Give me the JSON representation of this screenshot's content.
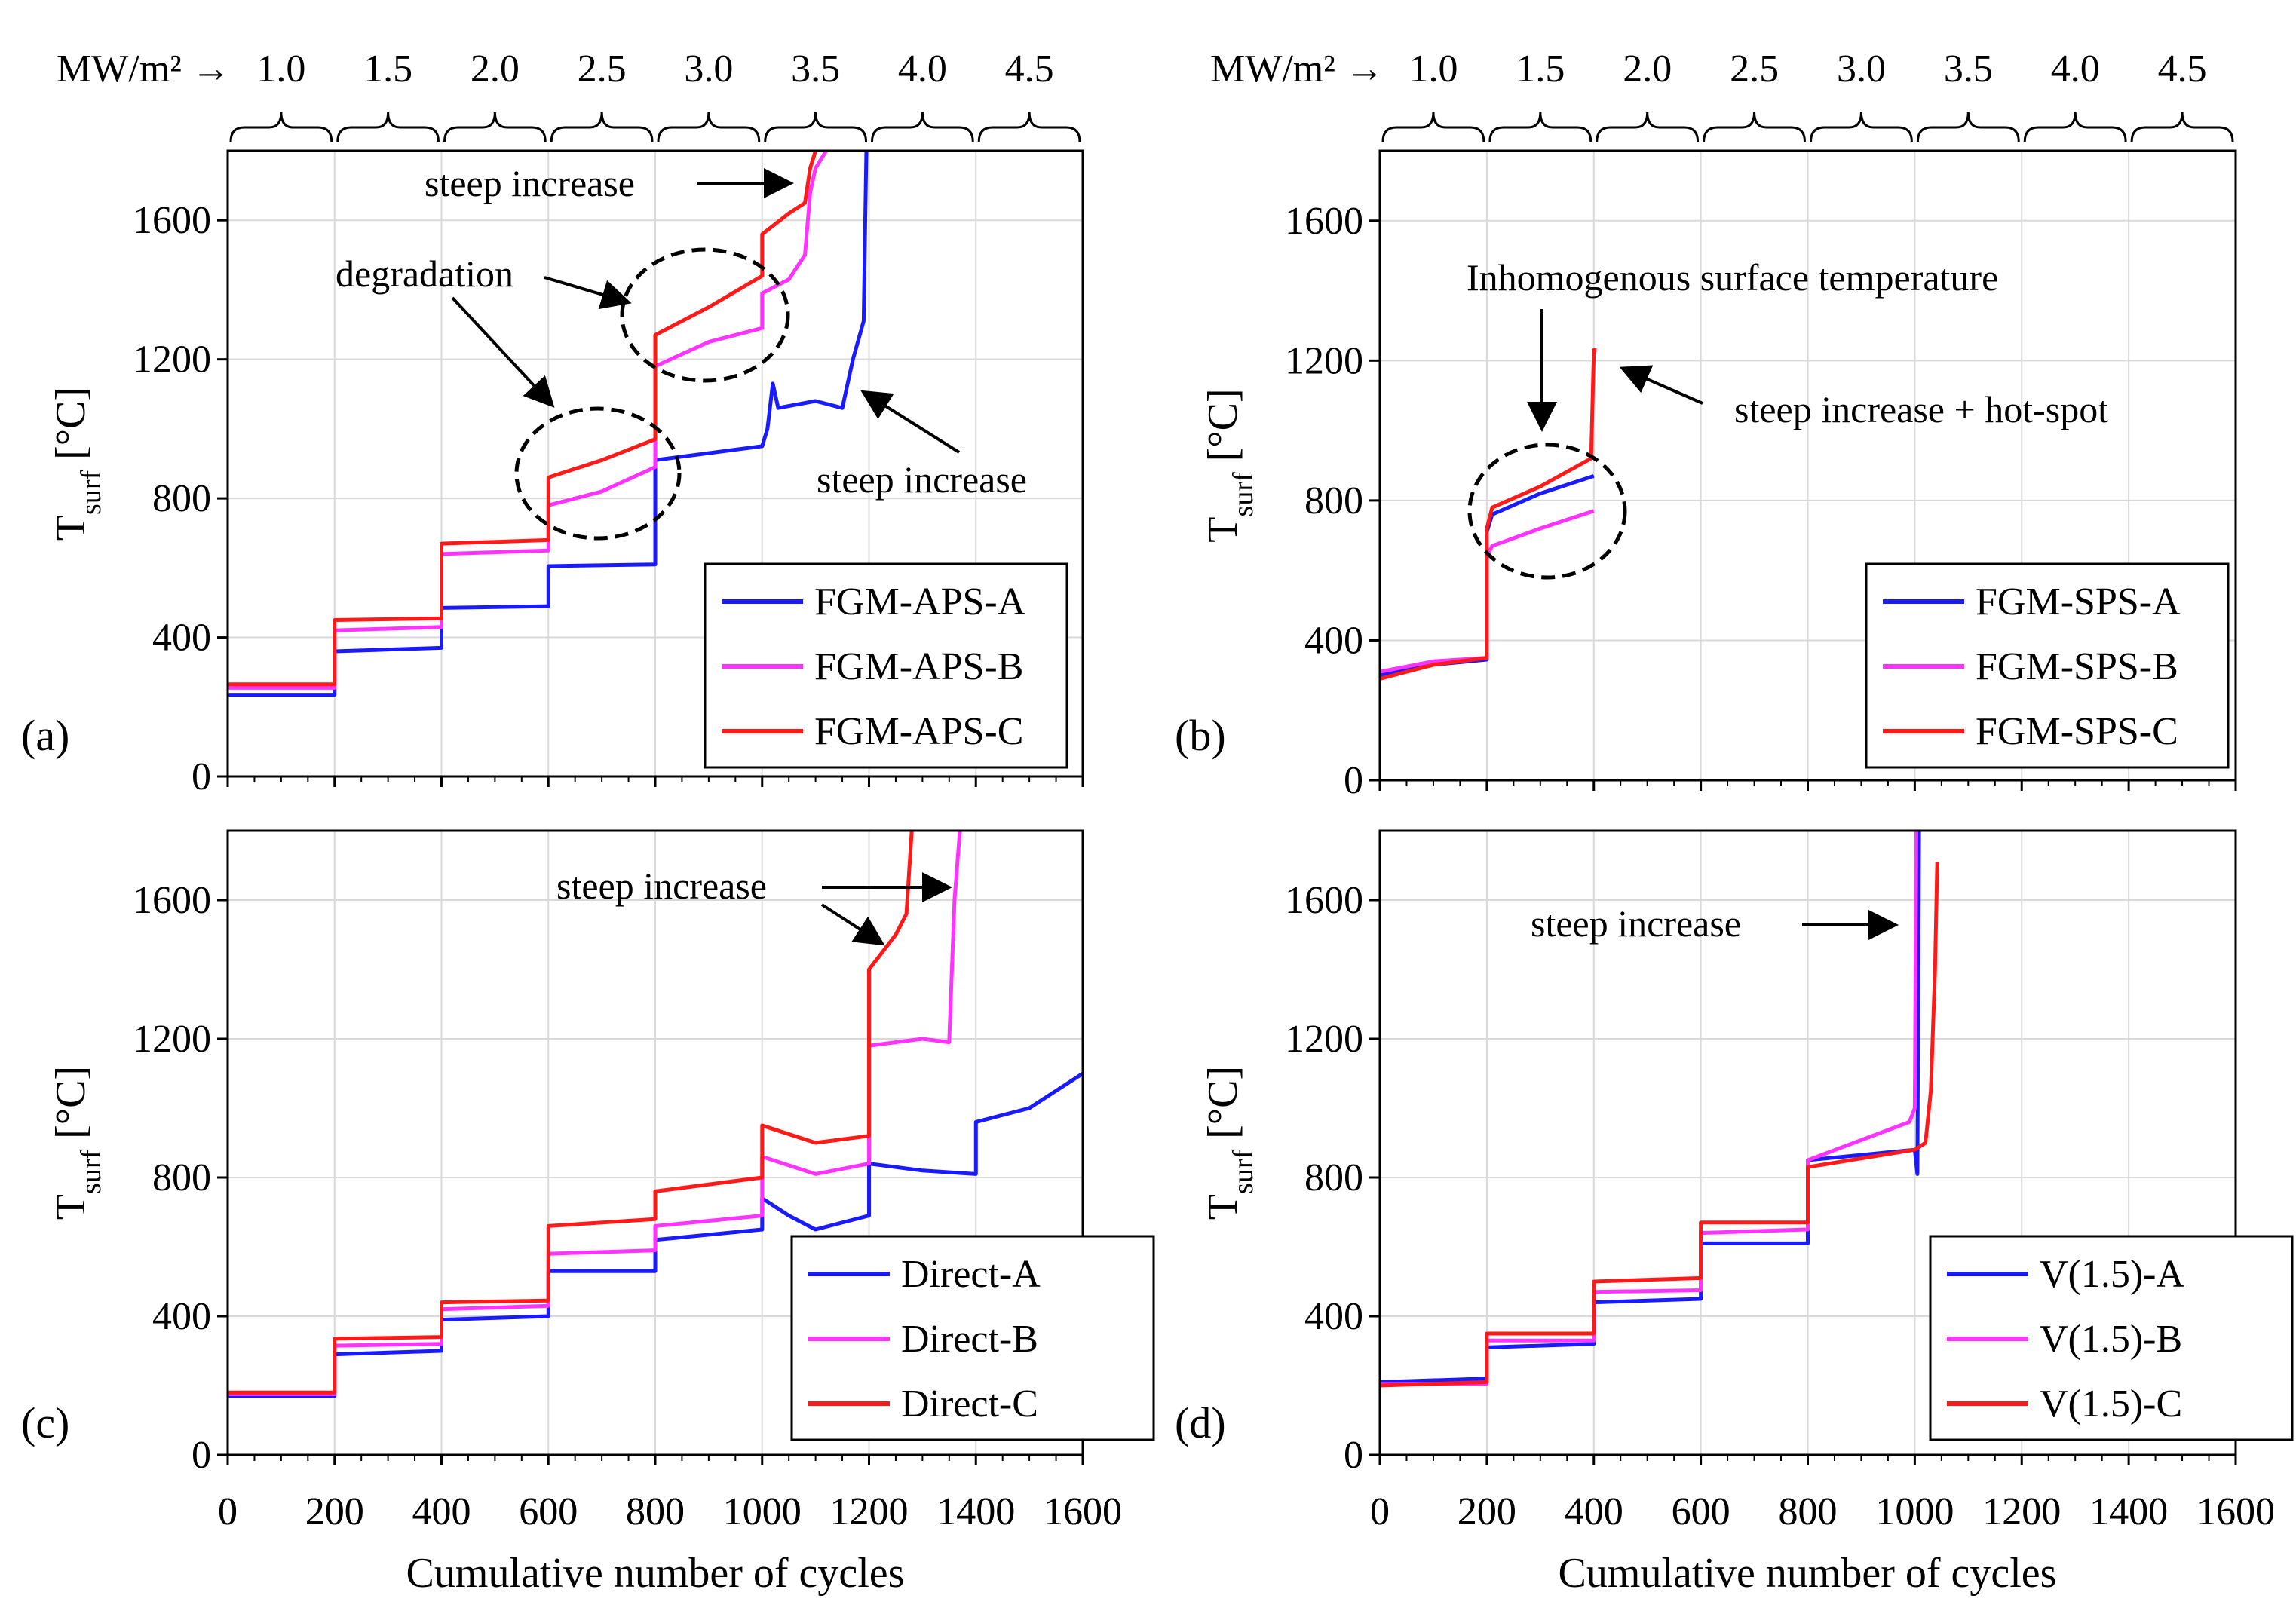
{
  "flux_axis": {
    "unit_label": "MW/m²",
    "arrow": "→",
    "levels": [
      "1.0",
      "1.5",
      "2.0",
      "2.5",
      "3.0",
      "3.5",
      "4.0",
      "4.5"
    ]
  },
  "x_axis_label": "Cumulative number of cycles",
  "y_axis_label_main": "T",
  "y_axis_label_sub": "surf",
  "y_axis_label_unit": " [°C]",
  "x_ticks": [
    "0",
    "200",
    "400",
    "600",
    "800",
    "1000",
    "1200",
    "1400",
    "1600"
  ],
  "y_ticks": [
    "0",
    "400",
    "800",
    "1200",
    "1600"
  ],
  "colors": {
    "A": "#1a1aff",
    "B": "#ff33ff",
    "C": "#ff1a1a",
    "annotation": "#000000"
  },
  "chart_data": [
    {
      "panel": "(a)",
      "type": "line",
      "xlim": [
        0,
        1600
      ],
      "ylim": [
        0,
        1800
      ],
      "series": [
        {
          "name": "FGM-APS-A",
          "color": "#1a1aff",
          "x": [
            0,
            200,
            200,
            400,
            400,
            600,
            600,
            800,
            800,
            1000,
            1010,
            1020,
            1030,
            1100,
            1150,
            1170,
            1190,
            1193,
            1195
          ],
          "y": [
            235,
            235,
            360,
            370,
            485,
            490,
            605,
            610,
            910,
            950,
            1000,
            1130,
            1060,
            1080,
            1060,
            1200,
            1310,
            1600,
            1800
          ]
        },
        {
          "name": "FGM-APS-B",
          "color": "#ff33ff",
          "x": [
            0,
            200,
            200,
            400,
            400,
            600,
            600,
            700,
            800,
            800,
            900,
            1000,
            1000,
            1050,
            1080,
            1090,
            1100,
            1120
          ],
          "y": [
            255,
            255,
            420,
            430,
            640,
            650,
            780,
            820,
            890,
            1180,
            1250,
            1290,
            1390,
            1430,
            1500,
            1680,
            1750,
            1800
          ]
        },
        {
          "name": "FGM-APS-C",
          "color": "#ff1a1a",
          "x": [
            0,
            200,
            200,
            400,
            400,
            600,
            600,
            700,
            800,
            800,
            900,
            1000,
            1000,
            1050,
            1080,
            1090,
            1100
          ],
          "y": [
            265,
            265,
            450,
            455,
            670,
            680,
            860,
            910,
            970,
            1270,
            1350,
            1440,
            1560,
            1620,
            1650,
            1750,
            1800
          ]
        }
      ],
      "annotations": [
        "steep increase",
        "degradation",
        "steep increase"
      ]
    },
    {
      "panel": "(b)",
      "type": "line",
      "xlim": [
        0,
        1600
      ],
      "ylim": [
        0,
        1800
      ],
      "series": [
        {
          "name": "FGM-SPS-A",
          "color": "#1a1aff",
          "x": [
            0,
            100,
            200,
            200,
            210,
            300,
            400
          ],
          "y": [
            300,
            330,
            345,
            710,
            760,
            820,
            870
          ]
        },
        {
          "name": "FGM-SPS-B",
          "color": "#ff33ff",
          "x": [
            0,
            100,
            200,
            200,
            210,
            300,
            400
          ],
          "y": [
            310,
            340,
            350,
            640,
            670,
            720,
            770
          ]
        },
        {
          "name": "FGM-SPS-C",
          "color": "#ff1a1a",
          "x": [
            0,
            100,
            200,
            200,
            210,
            300,
            395,
            400,
            405
          ],
          "y": [
            290,
            330,
            350,
            720,
            780,
            840,
            920,
            1230,
            1230
          ]
        }
      ],
      "annotations": [
        "Inhomogenous surface temperature",
        "steep increase + hot-spot"
      ]
    },
    {
      "panel": "(c)",
      "type": "line",
      "xlim": [
        0,
        1600
      ],
      "ylim": [
        0,
        1800
      ],
      "series": [
        {
          "name": "Direct-A",
          "color": "#1a1aff",
          "x": [
            0,
            200,
            200,
            400,
            400,
            600,
            600,
            800,
            800,
            1000,
            1000,
            1050,
            1100,
            1200,
            1200,
            1300,
            1400,
            1400,
            1500,
            1600
          ],
          "y": [
            170,
            170,
            290,
            300,
            390,
            400,
            530,
            530,
            620,
            650,
            740,
            690,
            650,
            690,
            840,
            820,
            810,
            960,
            1000,
            1100
          ]
        },
        {
          "name": "Direct-B",
          "color": "#ff33ff",
          "x": [
            0,
            200,
            200,
            400,
            400,
            600,
            600,
            800,
            800,
            1000,
            1000,
            1100,
            1200,
            1200,
            1300,
            1350,
            1360,
            1370
          ],
          "y": [
            175,
            175,
            315,
            320,
            420,
            430,
            580,
            590,
            660,
            690,
            860,
            810,
            840,
            1180,
            1200,
            1190,
            1600,
            1800
          ]
        },
        {
          "name": "Direct-C",
          "color": "#ff1a1a",
          "x": [
            0,
            200,
            200,
            400,
            400,
            600,
            600,
            800,
            800,
            1000,
            1000,
            1100,
            1200,
            1200,
            1250,
            1270,
            1280
          ],
          "y": [
            180,
            180,
            335,
            340,
            440,
            445,
            660,
            680,
            760,
            800,
            950,
            900,
            920,
            1400,
            1500,
            1560,
            1800
          ]
        }
      ],
      "annotations": [
        "steep increase"
      ]
    },
    {
      "panel": "(d)",
      "type": "line",
      "xlim": [
        0,
        1600
      ],
      "ylim": [
        0,
        1800
      ],
      "series": [
        {
          "name": "V(1.5)-A",
          "color": "#1a1aff",
          "x": [
            0,
            200,
            200,
            400,
            400,
            600,
            600,
            800,
            800,
            1000,
            1005,
            1008
          ],
          "y": [
            210,
            220,
            310,
            320,
            440,
            450,
            610,
            610,
            850,
            880,
            810,
            1800
          ]
        },
        {
          "name": "V(1.5)-B",
          "color": "#ff33ff",
          "x": [
            0,
            200,
            200,
            400,
            400,
            600,
            600,
            800,
            800,
            990,
            1000,
            1003
          ],
          "y": [
            205,
            205,
            330,
            330,
            470,
            475,
            640,
            650,
            850,
            960,
            1000,
            1800
          ]
        },
        {
          "name": "V(1.5)-C",
          "color": "#ff1a1a",
          "x": [
            0,
            200,
            200,
            400,
            400,
            600,
            600,
            800,
            800,
            1000,
            1020,
            1030,
            1038,
            1042
          ],
          "y": [
            200,
            210,
            350,
            350,
            500,
            510,
            670,
            670,
            830,
            880,
            900,
            1050,
            1400,
            1710
          ]
        }
      ],
      "annotations": [
        "steep increase"
      ]
    }
  ]
}
